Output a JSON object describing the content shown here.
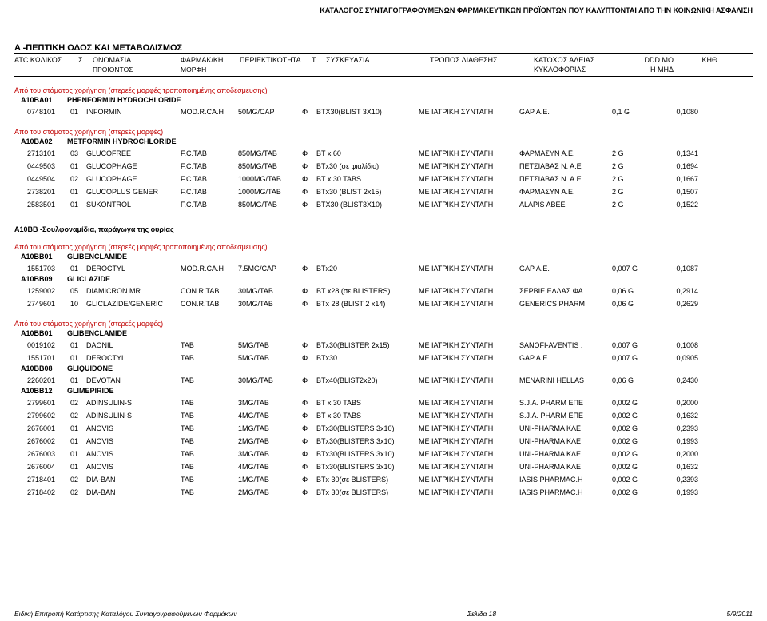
{
  "header_title": "ΚΑΤΑΛΟΓΟΣ ΣΥΝΤΑΓΟΓΡΑΦΟΥΜΕΝΩΝ ΦΑΡΜΑΚΕΥΤΙΚΩΝ ΠΡΟΪΟΝΤΩΝ ΠΟΥ ΚΑΛΥΠΤΟΝΤΑΙ ΑΠΟ ΤΗΝ ΚΟΙΝΩΝΙΚΗ ΑΣΦΑΛΙΣΗ",
  "section_heading": "A     -ΠΕΠΤΙΚΗ ΟΔΟΣ ΚΑΙ ΜΕΤΑΒΟΛΙΣΜΟΣ",
  "columns": {
    "line1": {
      "c1": "ATC ΚΩΔΙΚΟΣ",
      "c2": "Σ",
      "c3": "ΟΝΟΜΑΣΙΑ",
      "c4": "ΦΑΡΜΑΚ/ΚΗ",
      "c5": "ΠΕΡΙΕΚΤΙΚΟΤΗΤΑ",
      "c6": "Τ.",
      "c7": "ΣΥΣΚΕΥΑΣΙΑ",
      "c8": "ΤΡΟΠΟΣ ΔΙΑΘΕΣΗΣ",
      "c9": "ΚΑΤΟΧΟΣ ΑΔΕΙΑΣ",
      "c10": "DDD MO",
      "c11": "ΚΗΘ"
    },
    "line2": {
      "c3": "ΠΡΟΙΟΝΤΟΣ",
      "c4": "ΜΟΡΦΗ",
      "c9": "ΚΥΚΛΟΦΟΡΙΑΣ",
      "c10": "Ή ΜΗΔ"
    }
  },
  "groups": [
    {
      "note": "Από του στόματος χορήγηση (στερεές μορφές τροποποιημένης αποδέσμευσης)",
      "code_line": {
        "code": "A10BA01",
        "name": "PHENFORMIN HYDROCHLORIDE"
      },
      "rows": [
        {
          "d1": "0748101",
          "d2": "01",
          "d3": "INFORMIN",
          "d4": "MOD.R.CA.H",
          "d5": "50MG/CAP",
          "d6": "Φ",
          "d7": "BTX30(BLIST 3X10)",
          "d8": "ΜΕ ΙΑΤΡΙΚΗ ΣΥΝΤΑΓΗ",
          "d9": "GAP A.E.",
          "d10": "0,1 G",
          "d11": "0,1080"
        }
      ]
    },
    {
      "note": "Από του στόματος χορήγηση (στερεές μορφές)",
      "code_line": {
        "code": "A10BA02",
        "name": "METFORMIN HYDROCHLORIDE"
      },
      "rows": [
        {
          "d1": "2713101",
          "d2": "03",
          "d3": "GLUCOFREE",
          "d4": "F.C.TAB",
          "d5": "850MG/TAB",
          "d6": "Φ",
          "d7": "BT x 60",
          "d8": "ΜΕ ΙΑΤΡΙΚΗ ΣΥΝΤΑΓΗ",
          "d9": "ΦΑΡΜΑΣΥΝ Α.Ε.",
          "d10": "2 G",
          "d11": "0,1341"
        },
        {
          "d1": "0449503",
          "d2": "01",
          "d3": "GLUCOPHAGE",
          "d4": "F.C.TAB",
          "d5": "850MG/TAB",
          "d6": "Φ",
          "d7": "BTx30 (σε φιαλίδιο)",
          "d8": "ΜΕ ΙΑΤΡΙΚΗ ΣΥΝΤΑΓΗ",
          "d9": "ΠΕΤΣΙΑΒΑΣ Ν. Α.Ε",
          "d10": "2 G",
          "d11": "0,1694"
        },
        {
          "d1": "0449504",
          "d2": "02",
          "d3": "GLUCOPHAGE",
          "d4": "F.C.TAB",
          "d5": "1000MG/TAB",
          "d6": "Φ",
          "d7": "BT x 30 TABS",
          "d8": "ΜΕ ΙΑΤΡΙΚΗ ΣΥΝΤΑΓΗ",
          "d9": "ΠΕΤΣΙΑΒΑΣ Ν. Α.Ε",
          "d10": "2 G",
          "d11": "0,1667"
        },
        {
          "d1": "2738201",
          "d2": "01",
          "d3": "GLUCOPLUS GENER",
          "d4": "F.C.TAB",
          "d5": "1000MG/TAB",
          "d6": "Φ",
          "d7": "BTx30 (BLIST 2x15)",
          "d8": "ΜΕ ΙΑΤΡΙΚΗ ΣΥΝΤΑΓΗ",
          "d9": "ΦΑΡΜΑΣΥΝ Α.Ε.",
          "d10": "2 G",
          "d11": "0,1507"
        },
        {
          "d1": "2583501",
          "d2": "01",
          "d3": "SUKONTROL",
          "d4": "F.C.TAB",
          "d5": "850MG/TAB",
          "d6": "Φ",
          "d7": "BTX30 (BLIST3X10)",
          "d8": "ΜΕ ΙΑΤΡΙΚΗ ΣΥΝΤΑΓΗ",
          "d9": "ALAPIS ABEE",
          "d10": "2 G",
          "d11": "0,1522"
        }
      ]
    },
    {
      "plain_heading": "A10BB    -Σουλφοναμίδια, παράγωγα της ουρίας",
      "note": "Από του στόματος χορήγηση (στερεές μορφές τροποποιημένης αποδέσμευσης)",
      "subgroups": [
        {
          "code_line": {
            "code": "A10BB01",
            "name": "GLIBENCLAMIDE"
          },
          "rows": [
            {
              "d1": "1551703",
              "d2": "01",
              "d3": "DEROCTYL",
              "d4": "MOD.R.CA.H",
              "d5": "7.5MG/CAP",
              "d6": "Φ",
              "d7": "BTx20",
              "d8": "ΜΕ ΙΑΤΡΙΚΗ ΣΥΝΤΑΓΗ",
              "d9": "GAP A.E.",
              "d10": "0,007 G",
              "d11": "0,1087"
            }
          ]
        },
        {
          "code_line": {
            "code": "A10BB09",
            "name": "GLICLAZIDE"
          },
          "rows": [
            {
              "d1": "1259002",
              "d2": "05",
              "d3": "DIAMICRON MR",
              "d4": "CON.R.TAB",
              "d5": "30MG/TAB",
              "d6": "Φ",
              "d7": "BT x28 (σε BLISTERS)",
              "d8": "ΜΕ ΙΑΤΡΙΚΗ ΣΥΝΤΑΓΗ",
              "d9": "ΣΕΡΒΙΕ ΕΛΛΑΣ ΦΑ",
              "d10": "0,06 G",
              "d11": "0,2914"
            },
            {
              "d1": "2749601",
              "d2": "10",
              "d3": "GLICLAZIDE/GENERIC",
              "d4": "CON.R.TAB",
              "d5": "30MG/TAB",
              "d6": "Φ",
              "d7": "BTx 28 (BLIST 2 x14)",
              "d8": "ΜΕ ΙΑΤΡΙΚΗ ΣΥΝΤΑΓΗ",
              "d9": "GENERICS PHARM",
              "d10": "0,06 G",
              "d11": "0,2629"
            }
          ]
        }
      ]
    },
    {
      "note": "Από του στόματος χορήγηση (στερεές μορφές)",
      "subgroups": [
        {
          "code_line": {
            "code": "A10BB01",
            "name": "GLIBENCLAMIDE"
          },
          "rows": [
            {
              "d1": "0019102",
              "d2": "01",
              "d3": "DAONIL",
              "d4": "TAB",
              "d5": "5MG/TAB",
              "d6": "Φ",
              "d7": "BTx30(BLISTER 2x15)",
              "d8": "ΜΕ ΙΑΤΡΙΚΗ ΣΥΝΤΑΓΗ",
              "d9": "SANOFI-AVENTIS .",
              "d10": "0,007 G",
              "d11": "0,1008"
            },
            {
              "d1": "1551701",
              "d2": "01",
              "d3": "DEROCTYL",
              "d4": "TAB",
              "d5": "5MG/TAB",
              "d6": "Φ",
              "d7": "BTx30",
              "d8": "ΜΕ ΙΑΤΡΙΚΗ ΣΥΝΤΑΓΗ",
              "d9": "GAP A.E.",
              "d10": "0,007 G",
              "d11": "0,0905"
            }
          ]
        },
        {
          "code_line": {
            "code": "A10BB08",
            "name": "GLIQUIDONE"
          },
          "rows": [
            {
              "d1": "2260201",
              "d2": "01",
              "d3": "DEVOTAN",
              "d4": "TAB",
              "d5": "30MG/TAB",
              "d6": "Φ",
              "d7": "BTx40(BLIST2x20)",
              "d8": "ΜΕ ΙΑΤΡΙΚΗ ΣΥΝΤΑΓΗ",
              "d9": "MENARINI HELLAS",
              "d10": "0,06 G",
              "d11": "0,2430"
            }
          ]
        },
        {
          "code_line": {
            "code": "A10BB12",
            "name": "GLIMEPIRIDE"
          },
          "rows": [
            {
              "d1": "2799601",
              "d2": "02",
              "d3": "ADINSULIN-S",
              "d4": "TAB",
              "d5": "3MG/TAB",
              "d6": "Φ",
              "d7": "BT x 30 TABS",
              "d8": "ΜΕ ΙΑΤΡΙΚΗ ΣΥΝΤΑΓΗ",
              "d9": "S.J.A. PHARM ΕΠΕ",
              "d10": "0,002 G",
              "d11": "0,2000"
            },
            {
              "d1": "2799602",
              "d2": "02",
              "d3": "ADINSULIN-S",
              "d4": "TAB",
              "d5": "4MG/TAB",
              "d6": "Φ",
              "d7": "BT x 30 TABS",
              "d8": "ΜΕ ΙΑΤΡΙΚΗ ΣΥΝΤΑΓΗ",
              "d9": "S.J.A. PHARM ΕΠΕ",
              "d10": "0,002 G",
              "d11": "0,1632"
            },
            {
              "d1": "2676001",
              "d2": "01",
              "d3": "ANOVIS",
              "d4": "TAB",
              "d5": "1MG/TAB",
              "d6": "Φ",
              "d7": "BTx30(BLISTERS 3x10)",
              "d8": "ΜΕ ΙΑΤΡΙΚΗ ΣΥΝΤΑΓΗ",
              "d9": "UNI-PHARMA ΚΛΕ",
              "d10": "0,002 G",
              "d11": "0,2393"
            },
            {
              "d1": "2676002",
              "d2": "01",
              "d3": "ANOVIS",
              "d4": "TAB",
              "d5": "2MG/TAB",
              "d6": "Φ",
              "d7": "BTx30(BLISTERS 3x10)",
              "d8": "ΜΕ ΙΑΤΡΙΚΗ ΣΥΝΤΑΓΗ",
              "d9": "UNI-PHARMA ΚΛΕ",
              "d10": "0,002 G",
              "d11": "0,1993"
            },
            {
              "d1": "2676003",
              "d2": "01",
              "d3": "ANOVIS",
              "d4": "TAB",
              "d5": "3MG/TAB",
              "d6": "Φ",
              "d7": "BTx30(BLISTERS 3x10)",
              "d8": "ΜΕ ΙΑΤΡΙΚΗ ΣΥΝΤΑΓΗ",
              "d9": "UNI-PHARMA ΚΛΕ",
              "d10": "0,002 G",
              "d11": "0,2000"
            },
            {
              "d1": "2676004",
              "d2": "01",
              "d3": "ANOVIS",
              "d4": "TAB",
              "d5": "4MG/TAB",
              "d6": "Φ",
              "d7": "BTx30(BLISTERS 3x10)",
              "d8": "ΜΕ ΙΑΤΡΙΚΗ ΣΥΝΤΑΓΗ",
              "d9": "UNI-PHARMA ΚΛΕ",
              "d10": "0,002 G",
              "d11": "0,1632"
            },
            {
              "d1": "2718401",
              "d2": "02",
              "d3": "DIA-BAN",
              "d4": "TAB",
              "d5": "1MG/TAB",
              "d6": "Φ",
              "d7": "BTx 30(σε BLISTERS)",
              "d8": "ΜΕ ΙΑΤΡΙΚΗ ΣΥΝΤΑΓΗ",
              "d9": "IASIS PHARMAC.H",
              "d10": "0,002 G",
              "d11": "0,2393"
            },
            {
              "d1": "2718402",
              "d2": "02",
              "d3": "DIA-BAN",
              "d4": "TAB",
              "d5": "2MG/TAB",
              "d6": "Φ",
              "d7": "BTx 30(σε BLISTERS)",
              "d8": "ΜΕ ΙΑΤΡΙΚΗ ΣΥΝΤΑΓΗ",
              "d9": "IASIS PHARMAC.H",
              "d10": "0,002 G",
              "d11": "0,1993"
            }
          ]
        }
      ]
    }
  ],
  "footer": {
    "left": "Ειδική Επιτροπή Κατάρτισης Καταλόγου Συνταγογραφούμενων Φαρμάκων",
    "center": "Σελίδα 18",
    "right": "5/9/2011"
  }
}
